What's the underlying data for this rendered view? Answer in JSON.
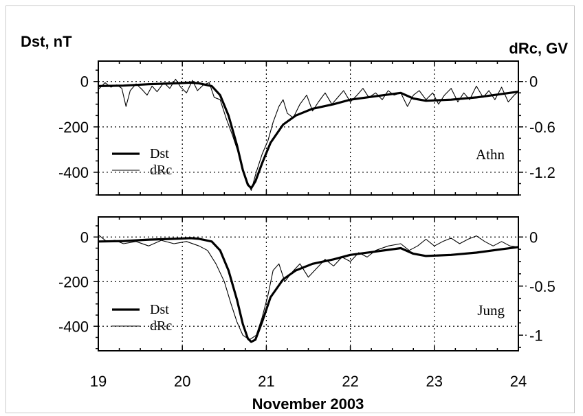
{
  "left_axis_label": "Dst, nT",
  "right_axis_label": "dRc, GV",
  "x_axis_label": "November 2003",
  "x_ticks": [
    "19",
    "20",
    "21",
    "22",
    "23",
    "24"
  ],
  "chart_data": [
    {
      "type": "line",
      "panel": "Athn",
      "title": "",
      "xlabel": "November 2003",
      "ylabel": "Dst, nT",
      "y2label": "dRc, GV",
      "xlim": [
        19,
        24
      ],
      "ylim": [
        -500,
        90
      ],
      "y_ticks": [
        "0",
        "-200",
        "-400"
      ],
      "y_tick_values": [
        0,
        -200,
        -400
      ],
      "y2_ticks": [
        "0",
        "-0.6",
        "-1.2"
      ],
      "y2_tick_values": [
        0,
        -200,
        -400
      ],
      "grid": true,
      "legend_position": "bottom-left",
      "series": [
        {
          "name": "Dst",
          "style": "thick",
          "points": [
            [
              19.0,
              -20
            ],
            [
              19.3,
              -18
            ],
            [
              19.6,
              -12
            ],
            [
              19.9,
              -8
            ],
            [
              20.1,
              -5
            ],
            [
              20.2,
              -8
            ],
            [
              20.35,
              -20
            ],
            [
              20.45,
              -60
            ],
            [
              20.55,
              -150
            ],
            [
              20.65,
              -280
            ],
            [
              20.72,
              -390
            ],
            [
              20.78,
              -455
            ],
            [
              20.82,
              -470
            ],
            [
              20.87,
              -440
            ],
            [
              20.95,
              -360
            ],
            [
              21.05,
              -270
            ],
            [
              21.2,
              -190
            ],
            [
              21.35,
              -150
            ],
            [
              21.55,
              -120
            ],
            [
              21.8,
              -100
            ],
            [
              22.0,
              -80
            ],
            [
              22.3,
              -65
            ],
            [
              22.6,
              -50
            ],
            [
              22.75,
              -75
            ],
            [
              22.9,
              -85
            ],
            [
              23.2,
              -80
            ],
            [
              23.5,
              -70
            ],
            [
              23.8,
              -55
            ],
            [
              24.0,
              -45
            ]
          ]
        },
        {
          "name": "dRc",
          "style": "thin",
          "points": [
            [
              19.0,
              -35
            ],
            [
              19.08,
              -5
            ],
            [
              19.15,
              -25
            ],
            [
              19.22,
              -15
            ],
            [
              19.28,
              -30
            ],
            [
              19.33,
              -110
            ],
            [
              19.38,
              -40
            ],
            [
              19.45,
              -10
            ],
            [
              19.52,
              -35
            ],
            [
              19.58,
              -60
            ],
            [
              19.64,
              -20
            ],
            [
              19.7,
              -45
            ],
            [
              19.78,
              -5
            ],
            [
              19.85,
              -30
            ],
            [
              19.92,
              10
            ],
            [
              19.98,
              -25
            ],
            [
              20.05,
              -50
            ],
            [
              20.12,
              5
            ],
            [
              20.18,
              -40
            ],
            [
              20.25,
              -15
            ],
            [
              20.32,
              -5
            ],
            [
              20.38,
              -70
            ],
            [
              20.45,
              -80
            ],
            [
              20.52,
              -160
            ],
            [
              20.6,
              -240
            ],
            [
              20.68,
              -330
            ],
            [
              20.75,
              -420
            ],
            [
              20.82,
              -480
            ],
            [
              20.88,
              -400
            ],
            [
              20.95,
              -320
            ],
            [
              21.02,
              -260
            ],
            [
              21.08,
              -180
            ],
            [
              21.15,
              -110
            ],
            [
              21.2,
              -80
            ],
            [
              21.25,
              -140
            ],
            [
              21.32,
              -160
            ],
            [
              21.4,
              -100
            ],
            [
              21.48,
              -60
            ],
            [
              21.55,
              -130
            ],
            [
              21.62,
              -90
            ],
            [
              21.7,
              -50
            ],
            [
              21.78,
              -100
            ],
            [
              21.85,
              -70
            ],
            [
              21.92,
              -40
            ],
            [
              22.0,
              -90
            ],
            [
              22.08,
              -60
            ],
            [
              22.15,
              -30
            ],
            [
              22.22,
              -70
            ],
            [
              22.3,
              -50
            ],
            [
              22.38,
              -80
            ],
            [
              22.45,
              -40
            ],
            [
              22.52,
              -60
            ],
            [
              22.6,
              -50
            ],
            [
              22.68,
              -110
            ],
            [
              22.75,
              -60
            ],
            [
              22.82,
              -40
            ],
            [
              22.9,
              -80
            ],
            [
              22.98,
              -50
            ],
            [
              23.05,
              -100
            ],
            [
              23.12,
              -60
            ],
            [
              23.2,
              -30
            ],
            [
              23.28,
              -90
            ],
            [
              23.35,
              -50
            ],
            [
              23.42,
              -80
            ],
            [
              23.5,
              -20
            ],
            [
              23.58,
              -70
            ],
            [
              23.65,
              -40
            ],
            [
              23.72,
              -80
            ],
            [
              23.8,
              -25
            ],
            [
              23.88,
              -90
            ],
            [
              23.95,
              -60
            ],
            [
              24.0,
              -45
            ]
          ]
        }
      ]
    },
    {
      "type": "line",
      "panel": "Jung",
      "title": "",
      "xlabel": "November 2003",
      "ylabel": "Dst, nT",
      "y2label": "dRc, GV",
      "xlim": [
        19,
        24
      ],
      "ylim": [
        -510,
        90
      ],
      "y_ticks": [
        "0",
        "-200",
        "-400"
      ],
      "y_tick_values": [
        0,
        -200,
        -400
      ],
      "y2_ticks": [
        "0",
        "-0.5",
        "-1"
      ],
      "y2_tick_values": [
        0,
        -220,
        -440
      ],
      "grid": true,
      "legend_position": "bottom-left",
      "series": [
        {
          "name": "Dst",
          "style": "thick",
          "points": [
            [
              19.0,
              -20
            ],
            [
              19.3,
              -18
            ],
            [
              19.6,
              -12
            ],
            [
              19.9,
              -8
            ],
            [
              20.1,
              -5
            ],
            [
              20.2,
              -8
            ],
            [
              20.35,
              -20
            ],
            [
              20.45,
              -60
            ],
            [
              20.55,
              -150
            ],
            [
              20.65,
              -280
            ],
            [
              20.72,
              -390
            ],
            [
              20.78,
              -455
            ],
            [
              20.82,
              -470
            ],
            [
              20.87,
              -460
            ],
            [
              20.95,
              -380
            ],
            [
              21.05,
              -270
            ],
            [
              21.2,
              -190
            ],
            [
              21.35,
              -150
            ],
            [
              21.55,
              -120
            ],
            [
              21.8,
              -100
            ],
            [
              22.0,
              -80
            ],
            [
              22.3,
              -65
            ],
            [
              22.6,
              -50
            ],
            [
              22.75,
              -75
            ],
            [
              22.9,
              -85
            ],
            [
              23.2,
              -80
            ],
            [
              23.5,
              -70
            ],
            [
              23.8,
              -55
            ],
            [
              24.0,
              -45
            ]
          ]
        },
        {
          "name": "dRc",
          "style": "thin",
          "points": [
            [
              19.0,
              10
            ],
            [
              19.1,
              -20
            ],
            [
              19.2,
              -15
            ],
            [
              19.3,
              -30
            ],
            [
              19.45,
              -20
            ],
            [
              19.6,
              -40
            ],
            [
              19.75,
              -15
            ],
            [
              19.9,
              -30
            ],
            [
              20.05,
              -20
            ],
            [
              20.2,
              -40
            ],
            [
              20.3,
              -60
            ],
            [
              20.4,
              -120
            ],
            [
              20.5,
              -200
            ],
            [
              20.58,
              -300
            ],
            [
              20.65,
              -380
            ],
            [
              20.72,
              -440
            ],
            [
              20.8,
              -460
            ],
            [
              20.88,
              -440
            ],
            [
              20.95,
              -360
            ],
            [
              21.02,
              -260
            ],
            [
              21.08,
              -150
            ],
            [
              21.15,
              -120
            ],
            [
              21.22,
              -200
            ],
            [
              21.3,
              -160
            ],
            [
              21.4,
              -120
            ],
            [
              21.5,
              -180
            ],
            [
              21.6,
              -140
            ],
            [
              21.7,
              -100
            ],
            [
              21.8,
              -130
            ],
            [
              21.9,
              -90
            ],
            [
              22.0,
              -110
            ],
            [
              22.1,
              -70
            ],
            [
              22.2,
              -90
            ],
            [
              22.3,
              -60
            ],
            [
              22.45,
              -40
            ],
            [
              22.6,
              -30
            ],
            [
              22.7,
              -60
            ],
            [
              22.8,
              -40
            ],
            [
              22.9,
              -10
            ],
            [
              23.0,
              -40
            ],
            [
              23.1,
              -20
            ],
            [
              23.2,
              -5
            ],
            [
              23.3,
              -30
            ],
            [
              23.4,
              -10
            ],
            [
              23.5,
              5
            ],
            [
              23.6,
              -20
            ],
            [
              23.7,
              -40
            ],
            [
              23.8,
              -20
            ],
            [
              23.9,
              -40
            ],
            [
              24.0,
              -45
            ]
          ]
        }
      ]
    }
  ]
}
